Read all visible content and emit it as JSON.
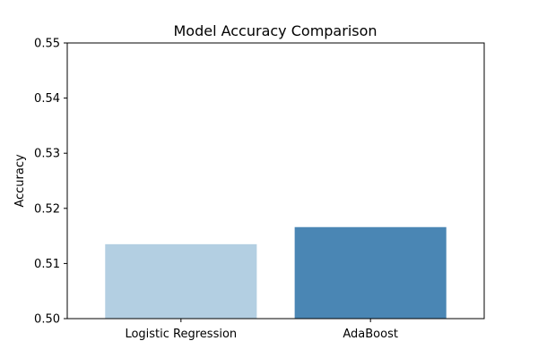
{
  "chart_data": {
    "type": "bar",
    "title": "Model Accuracy Comparison",
    "xlabel": "",
    "ylabel": "Accuracy",
    "categories": [
      "Logistic Regression",
      "AdaBoost"
    ],
    "values": [
      0.5135,
      0.5166
    ],
    "colors": [
      "#b3cfe2",
      "#4a86b4"
    ],
    "ylim": [
      0.5,
      0.55
    ],
    "yticks": [
      "0.50",
      "0.51",
      "0.52",
      "0.53",
      "0.54",
      "0.55"
    ],
    "grid": false,
    "legend": "none"
  }
}
